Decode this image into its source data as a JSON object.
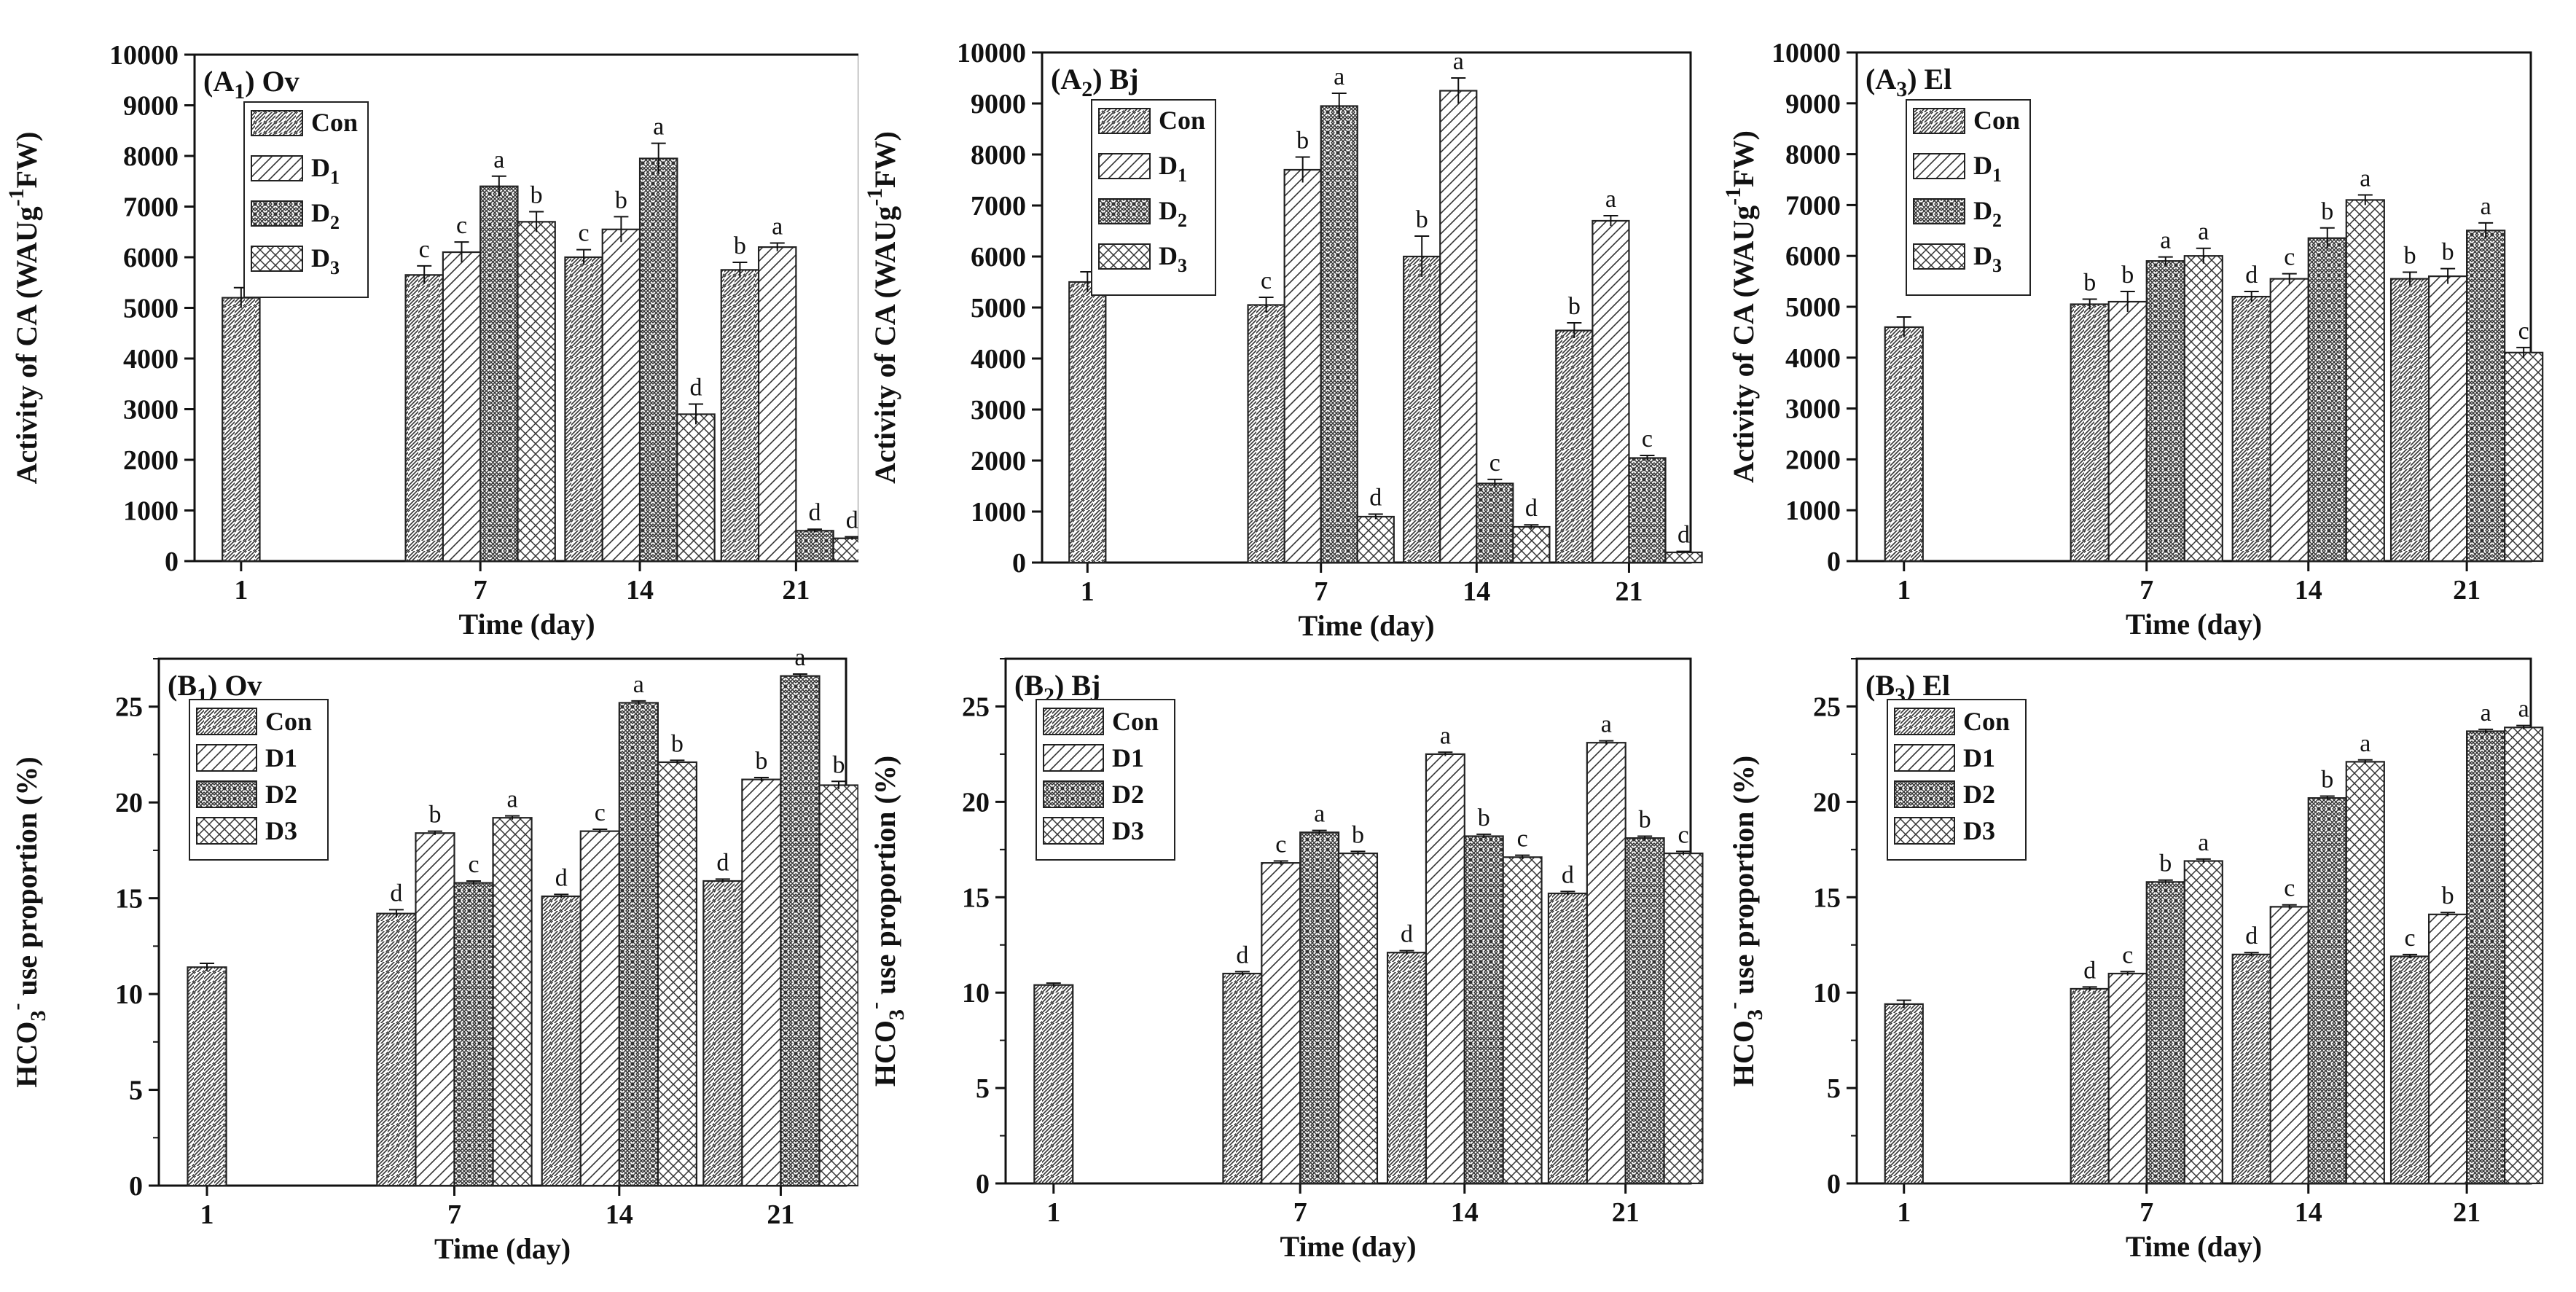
{
  "figure": {
    "groups_label": "Time (day)",
    "time_points": [
      "1",
      "7",
      "14",
      "21"
    ]
  },
  "chart_data": [
    {
      "id": "A1",
      "type": "bar",
      "panel_letter": "A",
      "panel_sub": "1",
      "panel_species": "Ov",
      "categories": [
        "1",
        "7",
        "14",
        "21"
      ],
      "xlabel": "Time (day)",
      "ylabel": {
        "main": "Activity of CA (WAUg",
        "sup": "-1",
        "tail": "FW)"
      },
      "ylim": [
        0,
        10000
      ],
      "yticks": [
        0,
        1000,
        2000,
        3000,
        4000,
        5000,
        6000,
        7000,
        8000,
        9000,
        10000
      ],
      "legend_style": "subscript",
      "series": [
        {
          "name": "Con",
          "base": "Con",
          "sub": "",
          "values": [
            5200,
            5650,
            6000,
            5750
          ],
          "errors": [
            200,
            180,
            150,
            150
          ],
          "letters": [
            "",
            "c",
            "c",
            "b"
          ]
        },
        {
          "name": "D1",
          "base": "D",
          "sub": "1",
          "values": [
            null,
            6100,
            6550,
            6200
          ],
          "errors": [
            0,
            200,
            250,
            80
          ],
          "letters": [
            "",
            "c",
            "b",
            "a"
          ]
        },
        {
          "name": "D2",
          "base": "D",
          "sub": "2",
          "values": [
            null,
            7400,
            7950,
            600
          ],
          "errors": [
            0,
            200,
            300,
            30
          ],
          "letters": [
            "",
            "a",
            "a",
            "d"
          ]
        },
        {
          "name": "D3",
          "base": "D",
          "sub": "3",
          "values": [
            null,
            6700,
            2900,
            450
          ],
          "errors": [
            0,
            200,
            200,
            30
          ],
          "letters": [
            "",
            "b",
            "d",
            "d"
          ]
        }
      ]
    },
    {
      "id": "A2",
      "type": "bar",
      "panel_letter": "A",
      "panel_sub": "2",
      "panel_species": "Bj",
      "categories": [
        "1",
        "7",
        "14",
        "21"
      ],
      "xlabel": "Time (day)",
      "ylabel": {
        "main": "Activity of CA (WAUg",
        "sup": "-1",
        "tail": "FW)"
      },
      "ylim": [
        0,
        10000
      ],
      "yticks": [
        0,
        1000,
        2000,
        3000,
        4000,
        5000,
        6000,
        7000,
        8000,
        9000,
        10000
      ],
      "legend_style": "subscript",
      "series": [
        {
          "name": "Con",
          "base": "Con",
          "sub": "",
          "values": [
            5500,
            5050,
            6000,
            4550
          ],
          "errors": [
            200,
            150,
            400,
            150
          ],
          "letters": [
            "",
            "c",
            "b",
            "b"
          ]
        },
        {
          "name": "D1",
          "base": "D",
          "sub": "1",
          "values": [
            null,
            7700,
            9250,
            6700
          ],
          "errors": [
            0,
            250,
            250,
            100
          ],
          "letters": [
            "",
            "b",
            "a",
            "a"
          ]
        },
        {
          "name": "D2",
          "base": "D",
          "sub": "2",
          "values": [
            null,
            8950,
            1550,
            2050
          ],
          "errors": [
            0,
            250,
            80,
            50
          ],
          "letters": [
            "",
            "a",
            "c",
            "c"
          ]
        },
        {
          "name": "D3",
          "base": "D",
          "sub": "3",
          "values": [
            null,
            900,
            700,
            200
          ],
          "errors": [
            0,
            50,
            40,
            20
          ],
          "letters": [
            "",
            "d",
            "d",
            "d"
          ]
        }
      ]
    },
    {
      "id": "A3",
      "type": "bar",
      "panel_letter": "A",
      "panel_sub": "3",
      "panel_species": "El",
      "categories": [
        "1",
        "7",
        "14",
        "21"
      ],
      "xlabel": "Time (day)",
      "ylabel": {
        "main": "Activity of CA (WAUg",
        "sup": "-1",
        "tail": "FW)"
      },
      "ylim": [
        0,
        10000
      ],
      "yticks": [
        0,
        1000,
        2000,
        3000,
        4000,
        5000,
        6000,
        7000,
        8000,
        9000,
        10000
      ],
      "legend_style": "subscript",
      "series": [
        {
          "name": "Con",
          "base": "Con",
          "sub": "",
          "values": [
            4600,
            5050,
            5200,
            5550
          ],
          "errors": [
            200,
            100,
            100,
            130
          ],
          "letters": [
            "",
            "b",
            "d",
            "b"
          ]
        },
        {
          "name": "D1",
          "base": "D",
          "sub": "1",
          "values": [
            null,
            5100,
            5550,
            5600
          ],
          "errors": [
            0,
            200,
            100,
            150
          ],
          "letters": [
            "",
            "b",
            "c",
            "b"
          ]
        },
        {
          "name": "D2",
          "base": "D",
          "sub": "2",
          "values": [
            null,
            5900,
            6350,
            6500
          ],
          "errors": [
            0,
            80,
            200,
            150
          ],
          "letters": [
            "",
            "a",
            "b",
            "a"
          ]
        },
        {
          "name": "D3",
          "base": "D",
          "sub": "3",
          "values": [
            null,
            6000,
            7100,
            4100
          ],
          "errors": [
            0,
            150,
            100,
            100
          ],
          "letters": [
            "",
            "a",
            "a",
            "c"
          ]
        }
      ]
    },
    {
      "id": "B1",
      "type": "bar",
      "panel_letter": "B",
      "panel_sub": "1",
      "panel_species": "Ov",
      "categories": [
        "1",
        "7",
        "14",
        "21"
      ],
      "xlabel": "Time (day)",
      "ylabel": {
        "main": "HCO",
        "sub": "3",
        "sup": "-",
        "tail": " use proportion (%)"
      },
      "ylim": [
        0,
        27.5
      ],
      "yticks": [
        0,
        5,
        10,
        15,
        20,
        25
      ],
      "legend_style": "plain",
      "series": [
        {
          "name": "Con",
          "base": "Con",
          "sub": "",
          "values": [
            11.4,
            14.2,
            15.1,
            15.9
          ],
          "errors": [
            0.2,
            0.2,
            0.1,
            0.1
          ],
          "letters": [
            "",
            "d",
            "d",
            "d"
          ]
        },
        {
          "name": "D1",
          "base": "D1",
          "sub": "",
          "values": [
            null,
            18.4,
            18.5,
            21.2
          ],
          "errors": [
            0,
            0.1,
            0.1,
            0.1
          ],
          "letters": [
            "",
            "b",
            "c",
            "b"
          ]
        },
        {
          "name": "D2",
          "base": "D2",
          "sub": "",
          "values": [
            null,
            15.8,
            25.2,
            26.6
          ],
          "errors": [
            0,
            0.1,
            0.1,
            0.1
          ],
          "letters": [
            "",
            "c",
            "a",
            "a"
          ]
        },
        {
          "name": "D3",
          "base": "D3",
          "sub": "",
          "values": [
            null,
            19.2,
            22.1,
            20.9
          ],
          "errors": [
            0,
            0.1,
            0.1,
            0.2
          ],
          "letters": [
            "",
            "a",
            "b",
            "b"
          ]
        }
      ]
    },
    {
      "id": "B2",
      "type": "bar",
      "panel_letter": "B",
      "panel_sub": "2",
      "panel_species": "Bj",
      "categories": [
        "1",
        "7",
        "14",
        "21"
      ],
      "xlabel": "Time (day)",
      "ylabel": {
        "main": "HCO",
        "sub": "3",
        "sup": "-",
        "tail": " use proportion (%)"
      },
      "ylim": [
        0,
        27.5
      ],
      "yticks": [
        0,
        5,
        10,
        15,
        20,
        25
      ],
      "legend_style": "plain",
      "series": [
        {
          "name": "Con",
          "base": "Con",
          "sub": "",
          "values": [
            10.4,
            11.0,
            12.1,
            15.2
          ],
          "errors": [
            0.1,
            0.1,
            0.1,
            0.1
          ],
          "letters": [
            "",
            "d",
            "d",
            "d"
          ]
        },
        {
          "name": "D1",
          "base": "D1",
          "sub": "",
          "values": [
            null,
            16.8,
            22.5,
            23.1
          ],
          "errors": [
            0,
            0.1,
            0.1,
            0.1
          ],
          "letters": [
            "",
            "c",
            "a",
            "a"
          ]
        },
        {
          "name": "D2",
          "base": "D2",
          "sub": "",
          "values": [
            null,
            18.4,
            18.2,
            18.1
          ],
          "errors": [
            0,
            0.1,
            0.1,
            0.1
          ],
          "letters": [
            "",
            "a",
            "b",
            "b"
          ]
        },
        {
          "name": "D3",
          "base": "D3",
          "sub": "",
          "values": [
            null,
            17.3,
            17.1,
            17.3
          ],
          "errors": [
            0,
            0.1,
            0.1,
            0.1
          ],
          "letters": [
            "",
            "b",
            "c",
            "c"
          ]
        }
      ]
    },
    {
      "id": "B3",
      "type": "bar",
      "panel_letter": "B",
      "panel_sub": "3",
      "panel_species": "El",
      "categories": [
        "1",
        "7",
        "14",
        "21"
      ],
      "xlabel": "Time (day)",
      "ylabel": {
        "main": "HCO",
        "sub": "3",
        "sup": "-",
        "tail": " use proportion (%)"
      },
      "ylim": [
        0,
        27.5
      ],
      "yticks": [
        0,
        5,
        10,
        15,
        20,
        25
      ],
      "legend_style": "plain",
      "series": [
        {
          "name": "Con",
          "base": "Con",
          "sub": "",
          "values": [
            9.4,
            10.2,
            12.0,
            11.9
          ],
          "errors": [
            0.2,
            0.1,
            0.1,
            0.1
          ],
          "letters": [
            "",
            "d",
            "d",
            "c"
          ]
        },
        {
          "name": "D1",
          "base": "D1",
          "sub": "",
          "values": [
            null,
            11.0,
            14.5,
            14.1
          ],
          "errors": [
            0,
            0.1,
            0.1,
            0.1
          ],
          "letters": [
            "",
            "c",
            "c",
            "b"
          ]
        },
        {
          "name": "D2",
          "base": "D2",
          "sub": "",
          "values": [
            null,
            15.8,
            20.2,
            23.7
          ],
          "errors": [
            0,
            0.1,
            0.1,
            0.1
          ],
          "letters": [
            "",
            "b",
            "b",
            "a"
          ]
        },
        {
          "name": "D3",
          "base": "D3",
          "sub": "",
          "values": [
            null,
            16.9,
            22.1,
            23.9
          ],
          "errors": [
            0,
            0.1,
            0.1,
            0.1
          ],
          "letters": [
            "",
            "a",
            "a",
            "a"
          ]
        }
      ]
    }
  ]
}
